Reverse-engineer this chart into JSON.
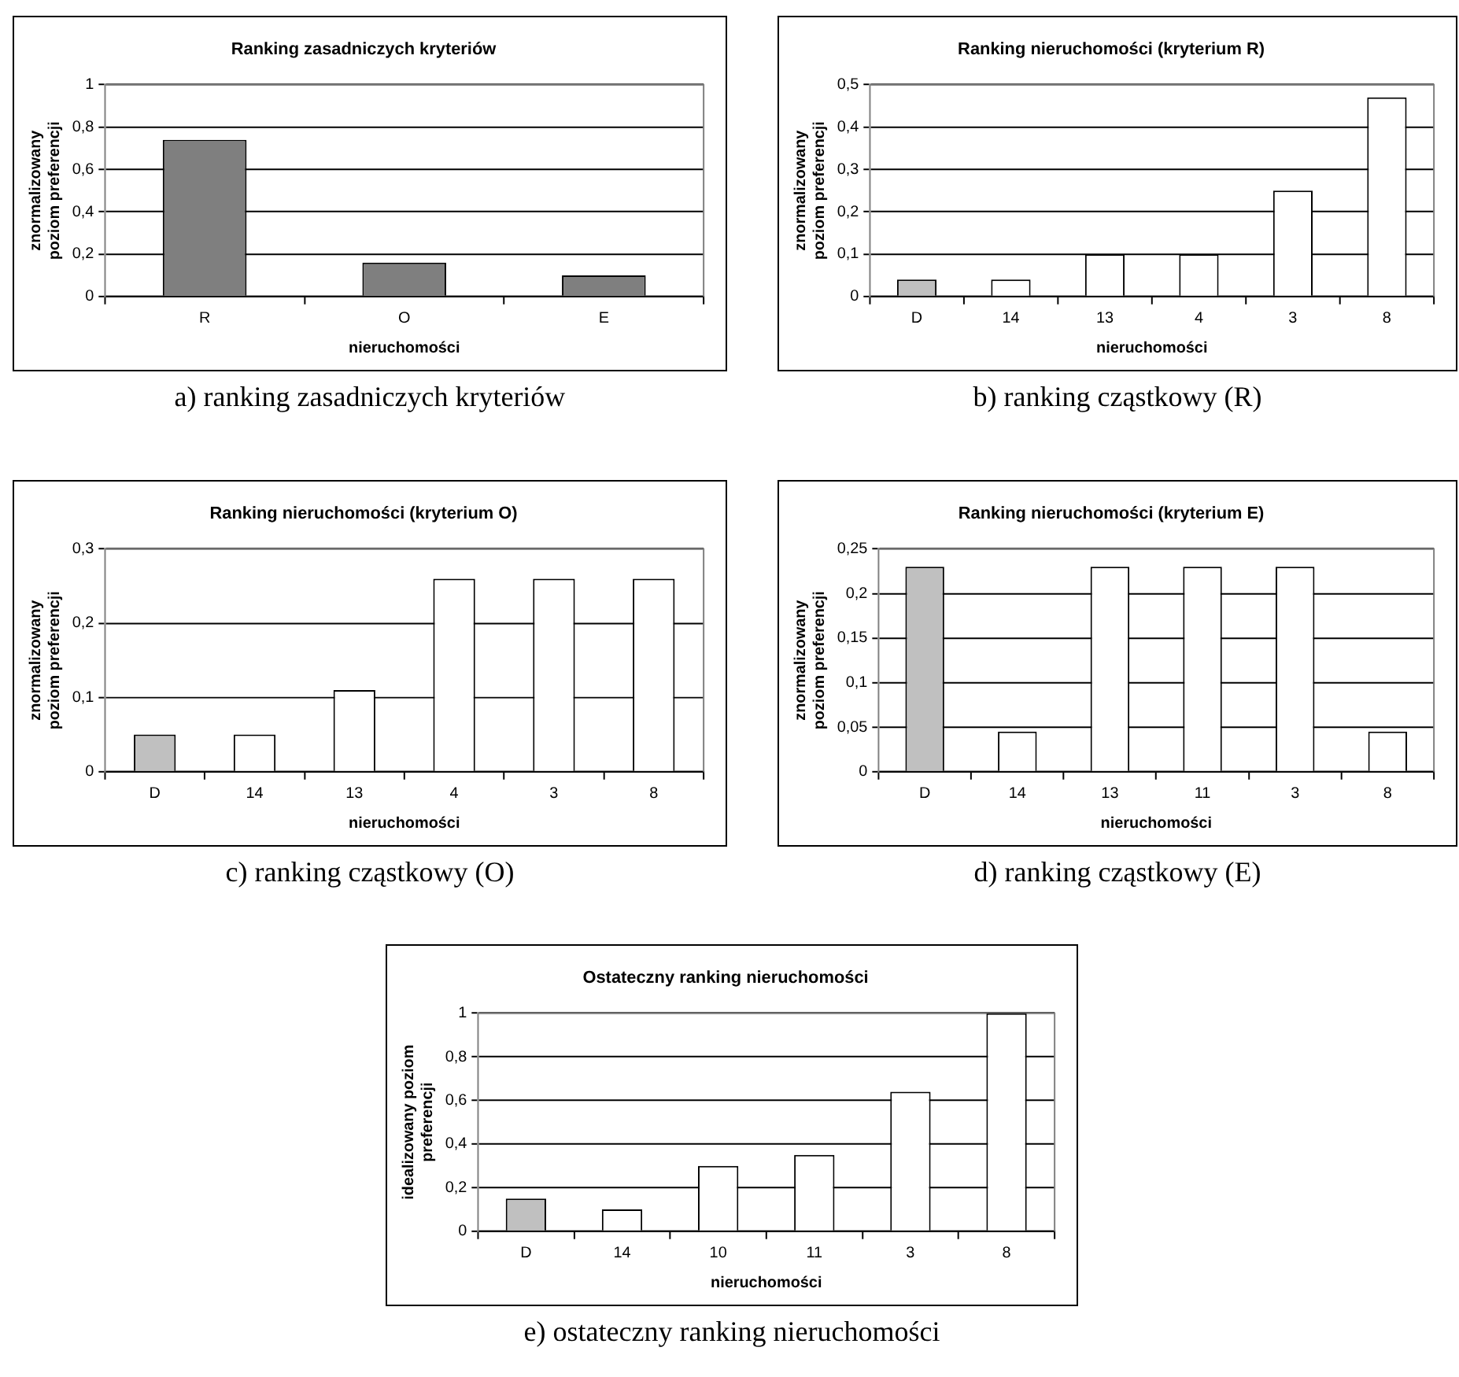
{
  "chart_data": [
    {
      "type": "bar",
      "title": "Ranking zasadniczych kryteriów",
      "xlabel": "nieruchomości",
      "ylabel": "znormalizowany poziom preferencji",
      "categories": [
        "R",
        "O",
        "E"
      ],
      "values": [
        0.74,
        0.16,
        0.1
      ],
      "color": "#7f7f7f",
      "ylim": [
        0,
        1
      ],
      "yticks": [
        {
          "value": 0,
          "label": "0"
        },
        {
          "value": 0.2,
          "label": "0,2"
        },
        {
          "value": 0.4,
          "label": "0,4"
        },
        {
          "value": 0.6,
          "label": "0,6"
        },
        {
          "value": 0.8,
          "label": "0,8"
        },
        {
          "value": 1,
          "label": "1"
        }
      ],
      "grid": "y",
      "legend": false,
      "annotations": [
        "a) ranking zasadniczych kryteriów"
      ]
    },
    {
      "type": "bar",
      "title": "Ranking nieruchomości (kryterium R)",
      "xlabel": "nieruchomości",
      "ylabel": "znormalizowany poziom preferencji",
      "categories": [
        "D",
        "14",
        "13",
        "4",
        "3",
        "8"
      ],
      "values": [
        0.04,
        0.04,
        0.1,
        0.1,
        0.25,
        0.47
      ],
      "colors": [
        "#c0c0c0",
        "#ffffff",
        "#ffffff",
        "#ffffff",
        "#ffffff",
        "#ffffff"
      ],
      "ylim": [
        0,
        0.5
      ],
      "yticks": [
        {
          "value": 0,
          "label": "0"
        },
        {
          "value": 0.1,
          "label": "0,1"
        },
        {
          "value": 0.2,
          "label": "0,2"
        },
        {
          "value": 0.3,
          "label": "0,3"
        },
        {
          "value": 0.4,
          "label": "0,4"
        },
        {
          "value": 0.5,
          "label": "0,5"
        }
      ],
      "grid": "y",
      "legend": false,
      "annotations": [
        "b) ranking cząstkowy (R)"
      ]
    },
    {
      "type": "bar",
      "title": "Ranking nieruchomości (kryterium O)",
      "xlabel": "nieruchomości",
      "ylabel": "znormalizowany poziom preferencji",
      "categories": [
        "D",
        "14",
        "13",
        "4",
        "3",
        "8"
      ],
      "values": [
        0.05,
        0.05,
        0.11,
        0.26,
        0.26,
        0.26
      ],
      "colors": [
        "#c0c0c0",
        "#ffffff",
        "#ffffff",
        "#ffffff",
        "#ffffff",
        "#ffffff"
      ],
      "ylim": [
        0,
        0.3
      ],
      "yticks": [
        {
          "value": 0,
          "label": "0"
        },
        {
          "value": 0.1,
          "label": "0,1"
        },
        {
          "value": 0.2,
          "label": "0,2"
        },
        {
          "value": 0.3,
          "label": "0,3"
        }
      ],
      "grid": "y",
      "legend": false,
      "annotations": [
        "c) ranking cząstkowy (O)"
      ]
    },
    {
      "type": "bar",
      "title": "Ranking nieruchomości (kryterium E)",
      "xlabel": "nieruchomości",
      "ylabel": "znormalizowany poziom preferencji",
      "categories": [
        "D",
        "14",
        "13",
        "11",
        "3",
        "8"
      ],
      "values": [
        0.23,
        0.045,
        0.23,
        0.23,
        0.23,
        0.045
      ],
      "colors": [
        "#c0c0c0",
        "#ffffff",
        "#ffffff",
        "#ffffff",
        "#ffffff",
        "#ffffff"
      ],
      "ylim": [
        0,
        0.25
      ],
      "yticks": [
        {
          "value": 0,
          "label": "0"
        },
        {
          "value": 0.05,
          "label": "0,05"
        },
        {
          "value": 0.1,
          "label": "0,1"
        },
        {
          "value": 0.15,
          "label": "0,15"
        },
        {
          "value": 0.2,
          "label": "0,2"
        },
        {
          "value": 0.25,
          "label": "0,25"
        }
      ],
      "grid": "y",
      "legend": false,
      "annotations": [
        "d) ranking cząstkowy (E)"
      ]
    },
    {
      "type": "bar",
      "title": "Ostateczny ranking nieruchomości",
      "xlabel": "nieruchomości",
      "ylabel": "idealizowany poziom preferencji",
      "categories": [
        "D",
        "14",
        "10",
        "11",
        "3",
        "8"
      ],
      "values": [
        0.15,
        0.1,
        0.3,
        0.35,
        0.64,
        1
      ],
      "colors": [
        "#c0c0c0",
        "#ffffff",
        "#ffffff",
        "#ffffff",
        "#ffffff",
        "#ffffff"
      ],
      "ylim": [
        0,
        1
      ],
      "yticks": [
        {
          "value": 0,
          "label": "0"
        },
        {
          "value": 0.2,
          "label": "0,2"
        },
        {
          "value": 0.4,
          "label": "0,4"
        },
        {
          "value": 0.6,
          "label": "0,6"
        },
        {
          "value": 0.8,
          "label": "0,8"
        },
        {
          "value": 1,
          "label": "1"
        }
      ],
      "grid": "y",
      "legend": false,
      "annotations": [
        "e) ostateczny ranking nieruchomości"
      ]
    }
  ]
}
